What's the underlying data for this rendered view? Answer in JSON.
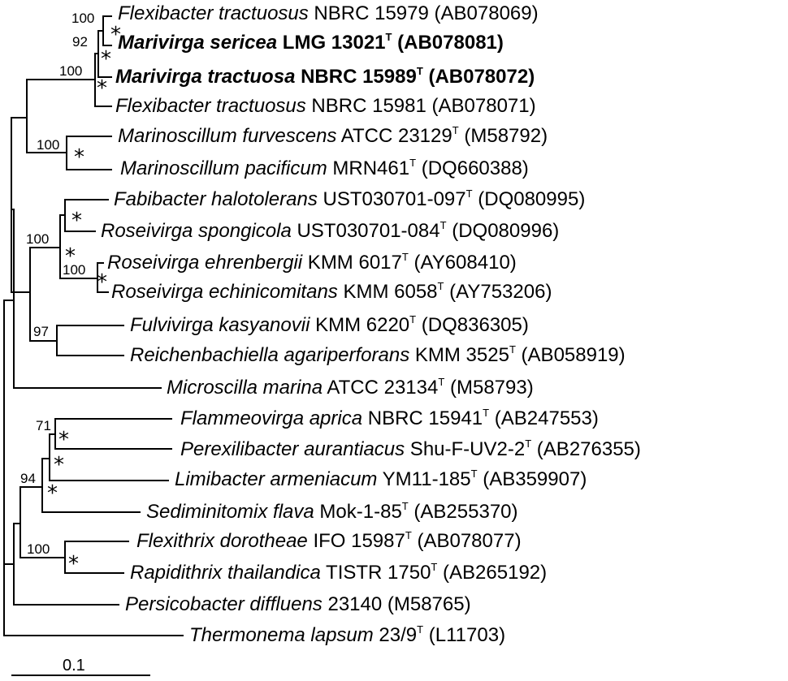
{
  "taxa": [
    {
      "genus": "Flexibacter tractuosus",
      "rest": "NBRC 15979 (AB078069)",
      "type": false,
      "bold": false
    },
    {
      "genus": "Marivirga sericea",
      "rest": "LMG 13021",
      "acc": "(AB078081)",
      "type": true,
      "bold": true
    },
    {
      "genus": "Marivirga tractuosa",
      "rest": "NBRC 15989",
      "acc": "(AB078072)",
      "type": true,
      "bold": true
    },
    {
      "genus": "Flexibacter tractuosus",
      "rest": "NBRC 15981 (AB078071)",
      "type": false,
      "bold": false
    },
    {
      "genus": "Marinoscillum furvescens",
      "rest": "ATCC 23129",
      "acc": "(M58792)",
      "type": true,
      "bold": false
    },
    {
      "genus": "Marinoscillum pacificum",
      "rest": "MRN461",
      "acc": "(DQ660388)",
      "type": true,
      "bold": false
    },
    {
      "genus": "Fabibacter halotolerans",
      "rest": "UST030701-097",
      "acc": "(DQ080995)",
      "type": true,
      "bold": false
    },
    {
      "genus": "Roseivirga spongicola",
      "rest": "UST030701-084",
      "acc": "(DQ080996)",
      "type": true,
      "bold": false
    },
    {
      "genus": "Roseivirga ehrenbergii",
      "rest": "KMM 6017",
      "acc": "(AY608410)",
      "type": true,
      "bold": false
    },
    {
      "genus": "Roseivirga echinicomitans",
      "rest": "KMM 6058",
      "acc": "(AY753206)",
      "type": true,
      "bold": false
    },
    {
      "genus": "Fulvivirga kasyanovii",
      "rest": "KMM 6220",
      "acc": "(DQ836305)",
      "type": true,
      "bold": false
    },
    {
      "genus": "Reichenbachiella agariperforans",
      "rest": "KMM 3525",
      "acc": "(AB058919)",
      "type": true,
      "bold": false
    },
    {
      "genus": "Microscilla marina",
      "rest": "ATCC 23134",
      "acc": "(M58793)",
      "type": true,
      "bold": false
    },
    {
      "genus": "Flammeovirga aprica",
      "rest": "NBRC 15941",
      "acc": "(AB247553)",
      "type": true,
      "bold": false
    },
    {
      "genus": "Perexilibacter aurantiacus",
      "rest": "Shu-F-UV2-2",
      "acc": "(AB276355)",
      "type": true,
      "bold": false
    },
    {
      "genus": "Limibacter armeniacum",
      "rest": "YM11-185",
      "acc": "(AB359907)",
      "type": true,
      "bold": false
    },
    {
      "genus": "Sediminitomix flava",
      "rest": "Mok-1-85",
      "acc": "(AB255370)",
      "type": true,
      "bold": false
    },
    {
      "genus": "Flexithrix dorotheae",
      "rest": "IFO 15987",
      "acc": "(AB078077)",
      "type": true,
      "bold": false
    },
    {
      "genus": "Rapidithrix thailandica",
      "rest": "TISTR 1750",
      "acc": "(AB265192)",
      "type": true,
      "bold": false
    },
    {
      "genus": "Persicobacter diffluens",
      "rest": "23140 (M58765)",
      "type": false,
      "bold": false
    },
    {
      "genus": "Thermonema lapsum",
      "rest": "23/9",
      "acc": "(L11703)",
      "type": true,
      "bold": false
    }
  ],
  "type_mark": "T",
  "bootstrap": [
    "100",
    "92",
    "100",
    "100",
    "100",
    "100",
    "97",
    "71",
    "94",
    "100"
  ],
  "star": "*",
  "scale_label": "0.1"
}
